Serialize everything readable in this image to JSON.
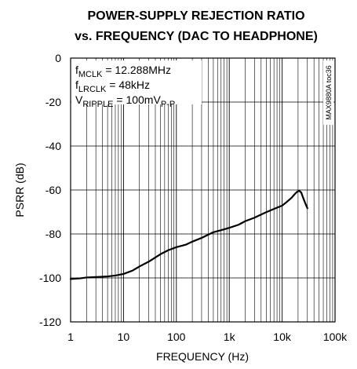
{
  "chart_data": {
    "type": "line",
    "title_line1": "POWER-SUPPLY REJECTION RATIO",
    "title_line2": "vs. FREQUENCY (DAC TO HEADPHONE)",
    "xlabel": "FREQUENCY (Hz)",
    "ylabel": "PSRR (dB)",
    "x_scale": "log",
    "xlim": [
      1,
      100000
    ],
    "ylim": [
      -120,
      0
    ],
    "x_ticks": [
      {
        "value": 1,
        "label": "1"
      },
      {
        "value": 10,
        "label": "10"
      },
      {
        "value": 100,
        "label": "100"
      },
      {
        "value": 1000,
        "label": "1k"
      },
      {
        "value": 10000,
        "label": "10k"
      },
      {
        "value": 100000,
        "label": "100k"
      }
    ],
    "y_ticks": [
      {
        "value": 0,
        "label": "0"
      },
      {
        "value": -20,
        "label": "-20"
      },
      {
        "value": -40,
        "label": "-40"
      },
      {
        "value": -60,
        "label": "-60"
      },
      {
        "value": -80,
        "label": "-80"
      },
      {
        "value": -100,
        "label": "-100"
      },
      {
        "value": -120,
        "label": "-120"
      }
    ],
    "grid": true,
    "annotations": {
      "mclk": {
        "main": "f",
        "sub": "MCLK",
        "rest": " = 12.288MHz"
      },
      "lrclk": {
        "main": "f",
        "sub": "LRCLK",
        "rest": " = 48kHz"
      },
      "ripple": {
        "main": "V",
        "sub": "RIPPLE",
        "rest": " = 100mV",
        "sub2": "P-P"
      }
    },
    "side_note": "MAX9880A toc36",
    "series": [
      {
        "x": [
          1,
          1.5,
          2,
          3,
          5,
          7,
          10,
          15,
          20,
          30,
          50,
          70,
          100,
          150,
          200,
          300,
          500,
          700,
          1000,
          1500,
          2000,
          3000,
          5000,
          7000,
          10000,
          12000,
          15000,
          17000,
          19000,
          21000,
          23000,
          25000,
          28000,
          30000
        ],
        "y": [
          -100.5,
          -100.2,
          -99.8,
          -99.6,
          -99.3,
          -98.9,
          -98.2,
          -96.6,
          -94.8,
          -92.6,
          -89.2,
          -87.4,
          -86.0,
          -84.9,
          -83.5,
          -81.8,
          -79.2,
          -78.3,
          -77.2,
          -75.8,
          -74.2,
          -72.6,
          -70.1,
          -68.6,
          -67.1,
          -65.6,
          -63.6,
          -62.1,
          -60.9,
          -60.3,
          -61.2,
          -63.6,
          -66.6,
          -68.3
        ]
      }
    ]
  }
}
